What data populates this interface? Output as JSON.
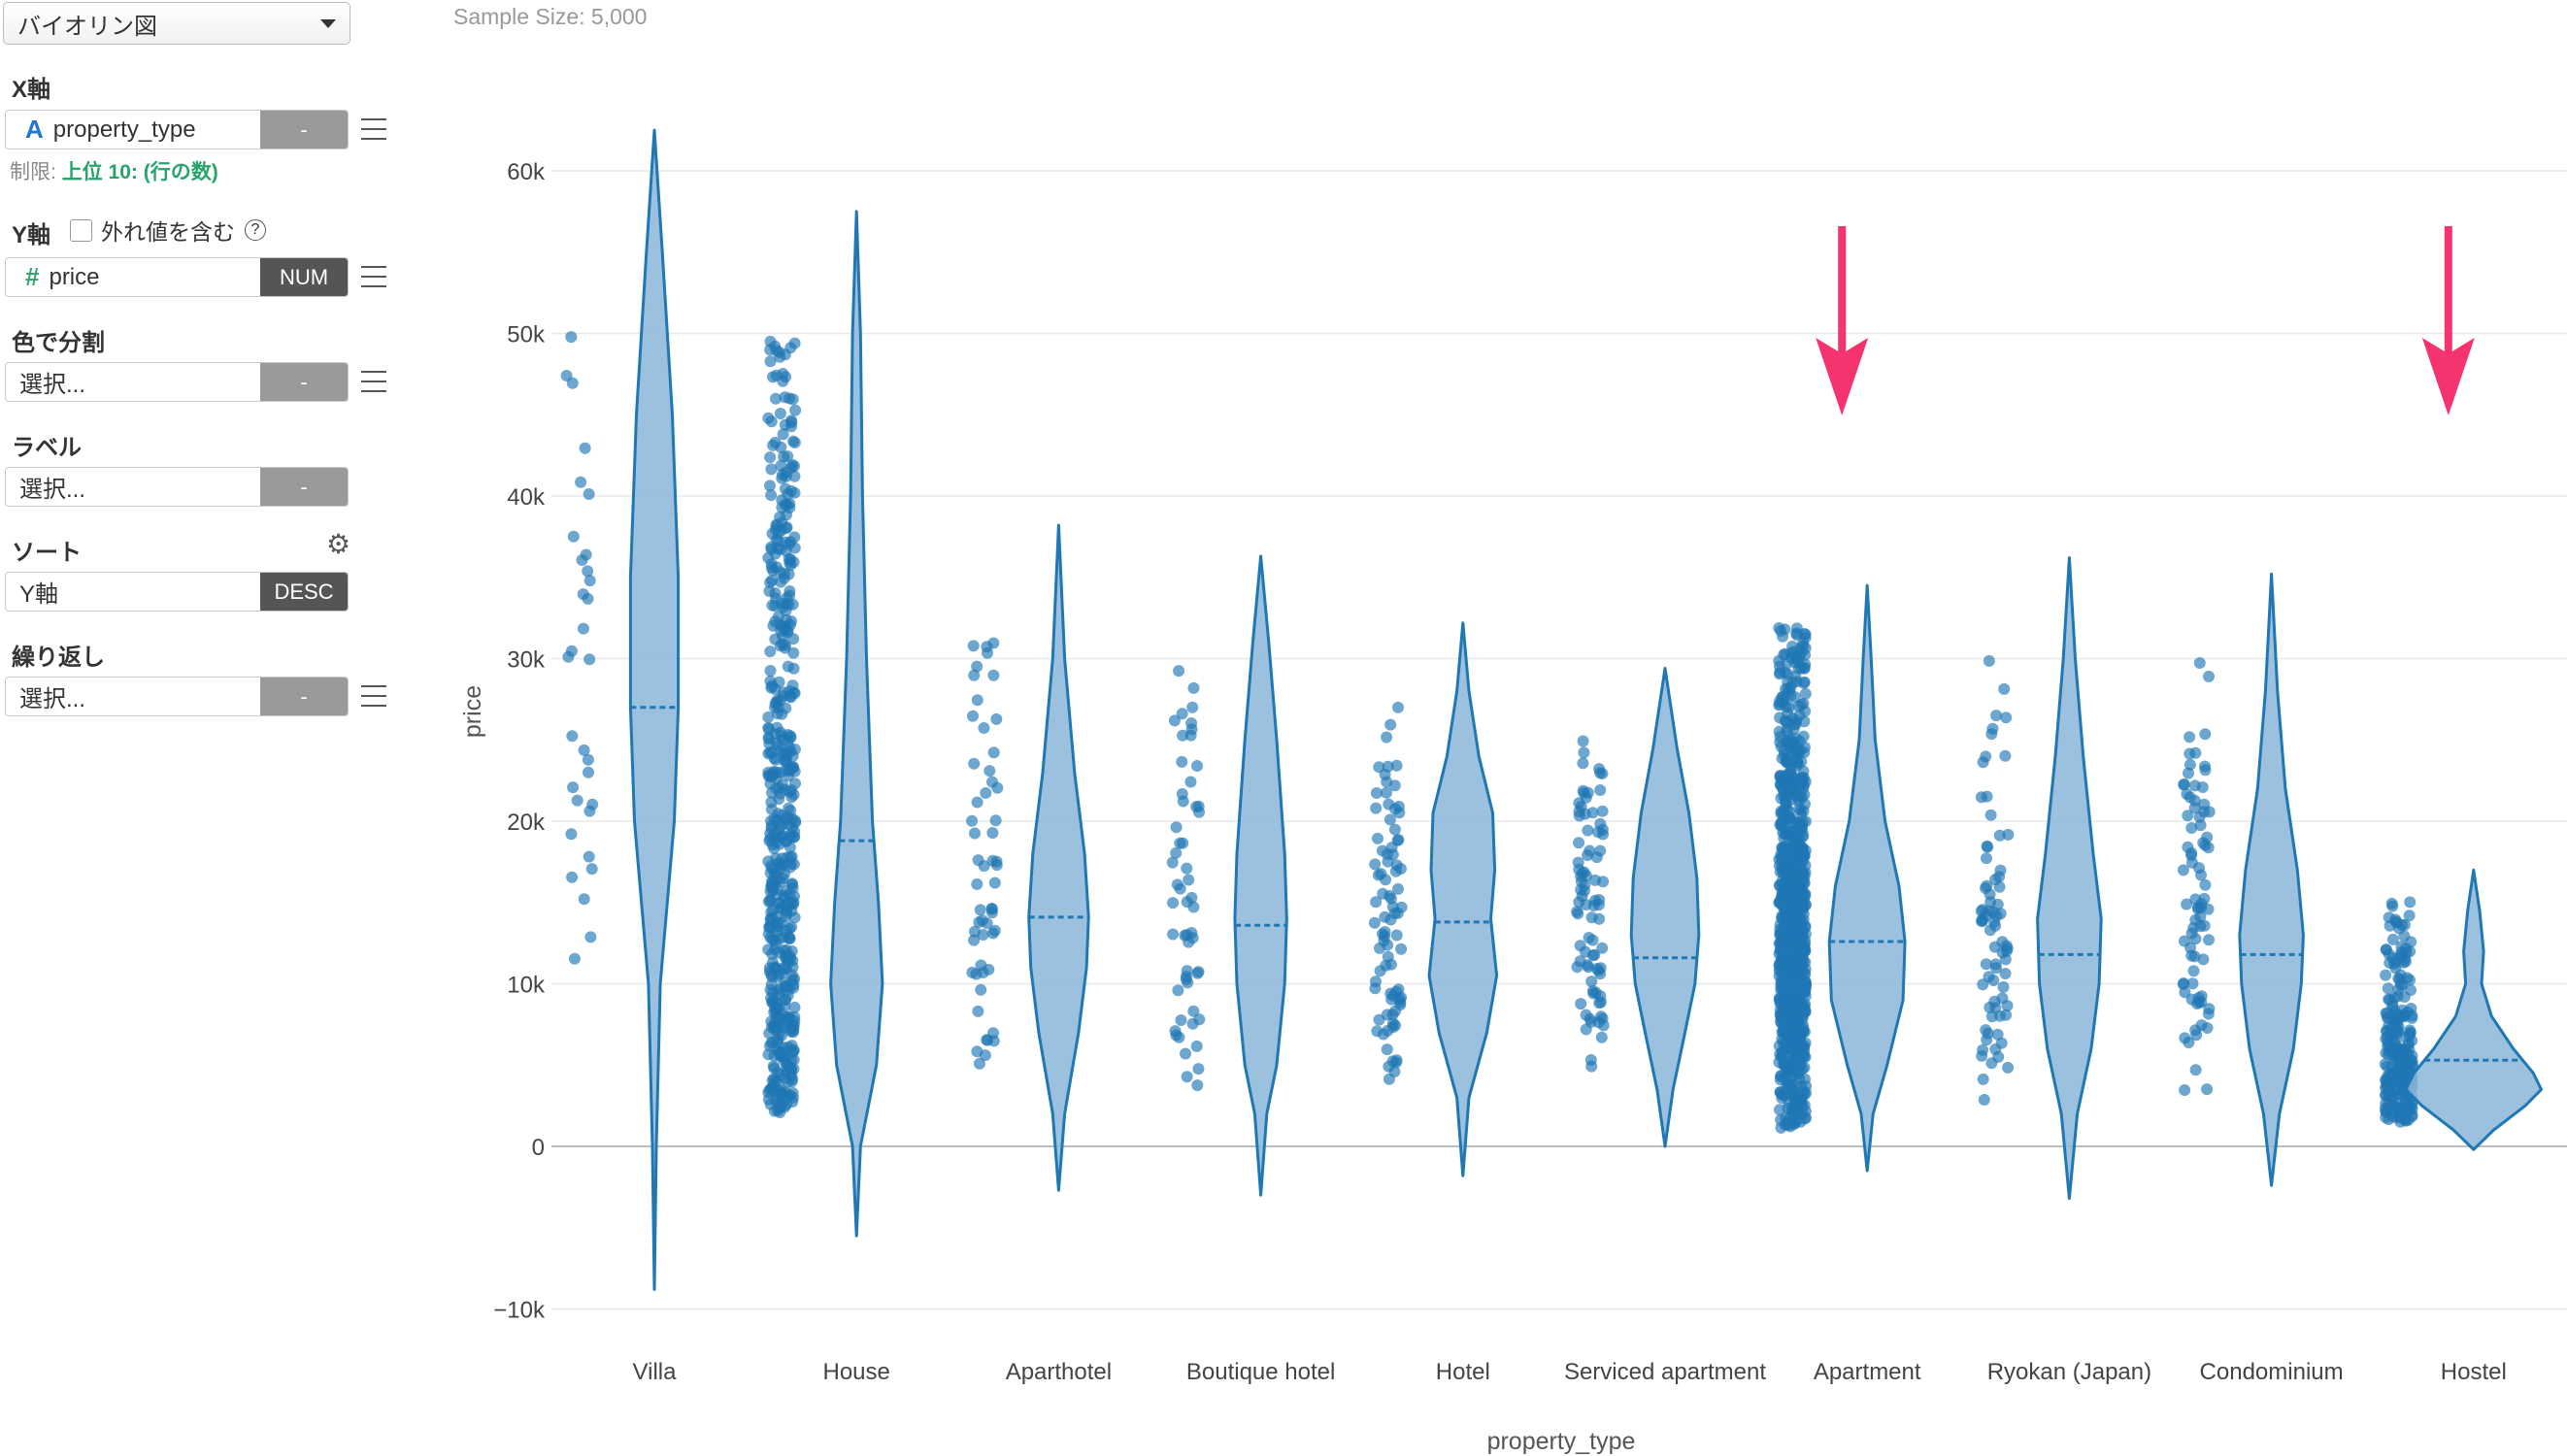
{
  "sidebar": {
    "chart_type": "バイオリン図",
    "x_axis": {
      "label": "X軸",
      "icon": "A",
      "value": "property_type",
      "button": "-",
      "limit_prefix": "制限:",
      "limit_value": "上位 10: (行の数)"
    },
    "y_axis": {
      "label": "Y軸",
      "outlier_label": "外れ値を含む",
      "help": "?",
      "icon": "#",
      "value": "price",
      "button": "NUM"
    },
    "color": {
      "label": "色で分割",
      "placeholder": "選択...",
      "button": "-"
    },
    "label": {
      "label": "ラベル",
      "placeholder": "選択...",
      "button": "-"
    },
    "sort": {
      "label": "ソート",
      "value": "Y軸",
      "button": "DESC"
    },
    "repeat": {
      "label": "繰り返し",
      "placeholder": "選択...",
      "button": "-"
    }
  },
  "sample_size": "Sample Size: 5,000",
  "colors": {
    "series": "#1f77b4",
    "violin_fill": "#8bb6d8",
    "arrow": "#f5336f",
    "grid": "#e8e8e8"
  },
  "chart_data": {
    "type": "violin",
    "xlabel": "property_type",
    "ylabel": "price",
    "ylim": [
      -10000,
      62000
    ],
    "yticks": [
      {
        "v": 60000,
        "label": "60k"
      },
      {
        "v": 50000,
        "label": "50k"
      },
      {
        "v": 40000,
        "label": "40k"
      },
      {
        "v": 30000,
        "label": "30k"
      },
      {
        "v": 20000,
        "label": "20k"
      },
      {
        "v": 10000,
        "label": "10k"
      },
      {
        "v": 0,
        "label": "0"
      },
      {
        "v": -10000,
        "label": "−10k"
      }
    ],
    "grid": true,
    "categories": [
      {
        "name": "Villa",
        "min": -8800,
        "max": 62500,
        "median": 27000,
        "pts_lo": 3500,
        "pts_hi": 50000,
        "pts_n": 32,
        "shape": [
          [
            -8800,
            0
          ],
          [
            0,
            1
          ],
          [
            10000,
            3
          ],
          [
            20000,
            10
          ],
          [
            27000,
            12
          ],
          [
            35000,
            12
          ],
          [
            45000,
            9
          ],
          [
            55000,
            4
          ],
          [
            62500,
            0
          ]
        ]
      },
      {
        "name": "House",
        "min": -5500,
        "max": 57500,
        "median": 18800,
        "pts_lo": 2000,
        "pts_hi": 50000,
        "pts_n": 520,
        "shape": [
          [
            -5500,
            0
          ],
          [
            0,
            2
          ],
          [
            5000,
            10
          ],
          [
            10000,
            13
          ],
          [
            15000,
            11
          ],
          [
            20000,
            8
          ],
          [
            30000,
            5
          ],
          [
            40000,
            3
          ],
          [
            50000,
            2
          ],
          [
            57500,
            0
          ]
        ]
      },
      {
        "name": "Aparthotel",
        "min": -2700,
        "max": 38200,
        "median": 14100,
        "pts_lo": 3300,
        "pts_hi": 32000,
        "pts_n": 55,
        "shape": [
          [
            -2700,
            0
          ],
          [
            2000,
            3
          ],
          [
            7000,
            10
          ],
          [
            11000,
            14
          ],
          [
            14100,
            15
          ],
          [
            18000,
            13
          ],
          [
            23000,
            8
          ],
          [
            30000,
            3
          ],
          [
            38200,
            0
          ]
        ]
      },
      {
        "name": "Boutique hotel",
        "min": -3000,
        "max": 36300,
        "median": 13600,
        "pts_lo": 3300,
        "pts_hi": 30000,
        "pts_n": 55,
        "shape": [
          [
            -3000,
            0
          ],
          [
            2000,
            3
          ],
          [
            5000,
            8
          ],
          [
            10000,
            12
          ],
          [
            14000,
            13
          ],
          [
            18000,
            12
          ],
          [
            25000,
            8
          ],
          [
            31000,
            4
          ],
          [
            36300,
            0
          ]
        ]
      },
      {
        "name": "Hotel",
        "min": -1800,
        "max": 32200,
        "median": 13800,
        "pts_lo": 3000,
        "pts_hi": 27000,
        "pts_n": 85,
        "shape": [
          [
            -1800,
            0
          ],
          [
            3000,
            3
          ],
          [
            7000,
            12
          ],
          [
            10500,
            17
          ],
          [
            14000,
            14
          ],
          [
            17000,
            16
          ],
          [
            20500,
            15
          ],
          [
            24000,
            8
          ],
          [
            28000,
            3
          ],
          [
            32200,
            0
          ]
        ]
      },
      {
        "name": "Serviced apartment",
        "min": 0,
        "max": 29400,
        "median": 11600,
        "pts_lo": 4200,
        "pts_hi": 25000,
        "pts_n": 85,
        "shape": [
          [
            0,
            0
          ],
          [
            3500,
            4
          ],
          [
            7000,
            10
          ],
          [
            10000,
            15
          ],
          [
            13000,
            17
          ],
          [
            16500,
            16
          ],
          [
            20500,
            12
          ],
          [
            24500,
            6
          ],
          [
            29400,
            0
          ]
        ]
      },
      {
        "name": "Apartment",
        "min": -1500,
        "max": 34500,
        "median": 12600,
        "pts_lo": 1000,
        "pts_hi": 32000,
        "pts_n": 900,
        "shape": [
          [
            -1500,
            0
          ],
          [
            2000,
            3
          ],
          [
            5000,
            10
          ],
          [
            9000,
            18
          ],
          [
            12600,
            19
          ],
          [
            16000,
            16
          ],
          [
            20000,
            9
          ],
          [
            25000,
            4
          ],
          [
            30000,
            2
          ],
          [
            34500,
            0
          ]
        ]
      },
      {
        "name": "Ryokan (Japan)",
        "min": -3200,
        "max": 36200,
        "median": 11800,
        "pts_lo": 2200,
        "pts_hi": 30500,
        "pts_n": 75,
        "shape": [
          [
            -3200,
            0
          ],
          [
            2000,
            4
          ],
          [
            6000,
            11
          ],
          [
            10000,
            15
          ],
          [
            14000,
            16
          ],
          [
            18000,
            12
          ],
          [
            24000,
            7
          ],
          [
            30000,
            3
          ],
          [
            36200,
            0
          ]
        ]
      },
      {
        "name": "Condominium",
        "min": -2400,
        "max": 35200,
        "median": 11800,
        "pts_lo": 2700,
        "pts_hi": 30000,
        "pts_n": 80,
        "shape": [
          [
            -2400,
            0
          ],
          [
            2000,
            4
          ],
          [
            6000,
            11
          ],
          [
            10000,
            15
          ],
          [
            13000,
            16
          ],
          [
            17000,
            13
          ],
          [
            22000,
            7
          ],
          [
            28000,
            3
          ],
          [
            35200,
            0
          ]
        ]
      },
      {
        "name": "Hostel",
        "min": -200,
        "max": 17000,
        "median": 5300,
        "pts_lo": 1500,
        "pts_hi": 15200,
        "pts_n": 260,
        "shape": [
          [
            -200,
            0
          ],
          [
            1000,
            10
          ],
          [
            2500,
            26
          ],
          [
            3500,
            34
          ],
          [
            4500,
            30
          ],
          [
            6000,
            20
          ],
          [
            8000,
            9
          ],
          [
            10000,
            4
          ],
          [
            12000,
            5
          ],
          [
            14500,
            3
          ],
          [
            17000,
            0
          ]
        ]
      }
    ],
    "annotations": [
      {
        "type": "arrow",
        "category": "Apartment"
      },
      {
        "type": "arrow",
        "category": "Hostel"
      }
    ]
  }
}
